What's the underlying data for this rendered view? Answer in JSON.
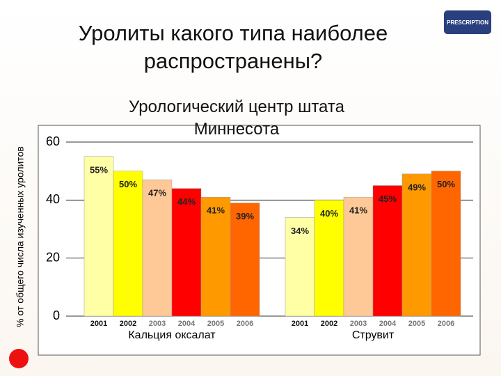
{
  "chart_data": {
    "type": "grouped-bar",
    "title": "Уролиты какого типа наиболее распространены?",
    "subtitle": "Урологический центр штата Миннесота",
    "y_label": "% от общего числа изученных уролитов",
    "logo": "PRESCRIPTION",
    "colors": [
      "#ffffa6",
      "#ffff00",
      "#ffc997",
      "#ff0000",
      "#ff9900",
      "#ff6600"
    ],
    "groups": [
      {
        "name": "Кальция оксалат",
        "categories": [
          "2001",
          "2002",
          "2003",
          "2004",
          "2005",
          "2006"
        ],
        "values": [
          55,
          50,
          47,
          44,
          41,
          39
        ],
        "value_labels": [
          "55%",
          "50%",
          "47%",
          "44%",
          "41%",
          "39%"
        ]
      },
      {
        "name": "Струвит",
        "categories": [
          "2001",
          "2002",
          "2003",
          "2004",
          "2005",
          "2006"
        ],
        "values": [
          34,
          40,
          41,
          45,
          49,
          50
        ],
        "value_labels": [
          "34%",
          "40%",
          "41%",
          "45%",
          "49%",
          "50%"
        ]
      }
    ],
    "ylim": [
      0,
      60
    ],
    "yticks": [
      0,
      20,
      40,
      60
    ],
    "grid": true
  }
}
